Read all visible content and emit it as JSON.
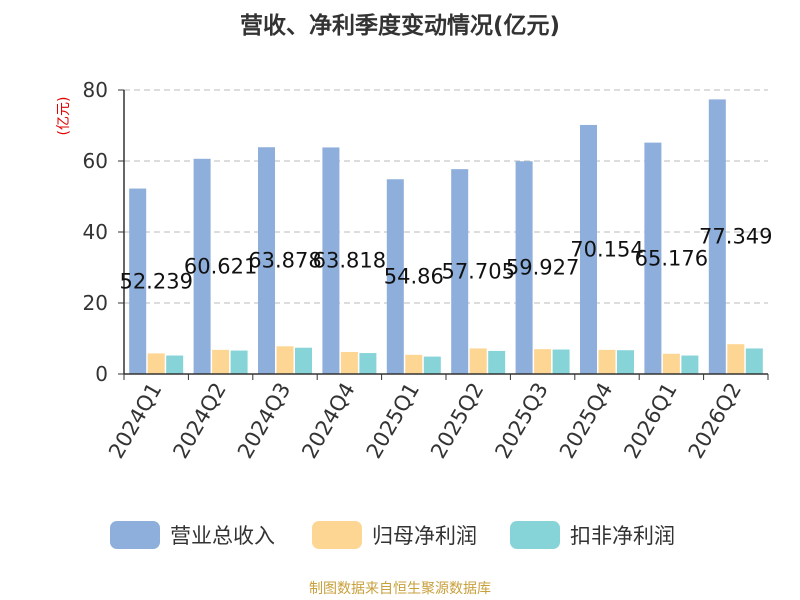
{
  "chart_data": {
    "type": "bar",
    "title": "营收、净利季度变动情况(亿元)",
    "ylabel": "(亿元)",
    "ylim": [
      0,
      80
    ],
    "yticks": [
      0,
      20,
      40,
      60,
      80
    ],
    "grid": true,
    "legend_position": "bottom",
    "categories": [
      "2024Q1",
      "2024Q2",
      "2024Q3",
      "2024Q4",
      "2025Q1",
      "2025Q2",
      "2025Q3",
      "2025Q4",
      "2026Q1",
      "2026Q2"
    ],
    "series": [
      {
        "name": "营业总收入",
        "color": "#8eaedb",
        "values": [
          52.239,
          60.621,
          63.878,
          63.818,
          54.86,
          57.705,
          59.927,
          70.154,
          65.176,
          77.349
        ],
        "labels": [
          "52.239",
          "60.621",
          "63.878",
          "63.818",
          "54.86",
          "57.705",
          "59.927",
          "70.154",
          "65.176",
          "77.349"
        ]
      },
      {
        "name": "归母净利润",
        "color": "#fdd693",
        "values": [
          5.8,
          6.8,
          7.8,
          6.2,
          5.4,
          7.2,
          7.0,
          6.8,
          5.7,
          8.4
        ]
      },
      {
        "name": "扣非净利润",
        "color": "#87d4d8",
        "values": [
          5.2,
          6.6,
          7.4,
          5.9,
          4.9,
          6.5,
          6.9,
          6.7,
          5.2,
          7.2
        ]
      }
    ]
  },
  "source": "制图数据来自恒生聚源数据库"
}
